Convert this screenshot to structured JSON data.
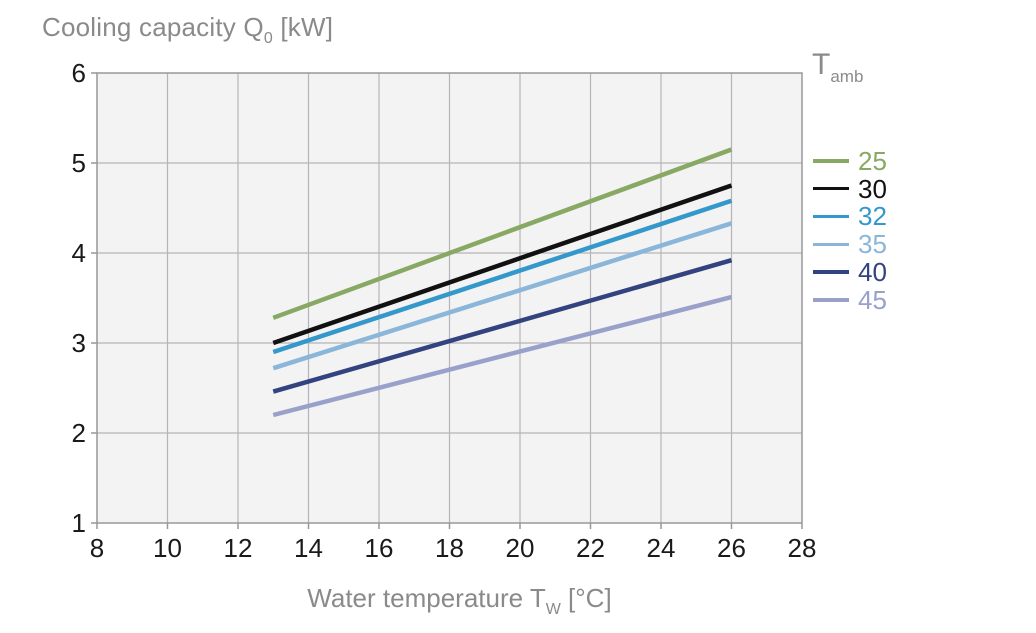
{
  "title": {
    "main": "Cooling capacity Q",
    "sub": "0",
    "unit": " [kW]"
  },
  "xaxis_label": {
    "main": "Water temperature T",
    "sub": "W",
    "unit": " [°C]"
  },
  "legend": {
    "title_main": "T",
    "title_sub": "amb"
  },
  "colors": {
    "title_text": "#8a8a8a",
    "tick_text": "#1a1a1a",
    "plot_background": "#f3f3f4",
    "plot_border": "#98989b",
    "gridline": "#b5b5b8"
  },
  "chart_data": {
    "type": "line",
    "title": "Cooling capacity Q0 [kW]",
    "xlabel": "Water temperature TW [°C]",
    "ylabel": "Cooling capacity Q0 [kW]",
    "legend_title": "Tamb",
    "legend_position": "right",
    "grid": true,
    "xlim": [
      8,
      28
    ],
    "ylim": [
      1,
      6
    ],
    "xticks": [
      8,
      10,
      12,
      14,
      16,
      18,
      20,
      22,
      24,
      26,
      28
    ],
    "yticks": [
      1,
      2,
      3,
      4,
      5,
      6
    ],
    "x": [
      13,
      26
    ],
    "series": [
      {
        "name": "25",
        "color": "#87a963",
        "values": [
          3.28,
          5.15
        ]
      },
      {
        "name": "30",
        "color": "#111111",
        "values": [
          3.0,
          4.75
        ]
      },
      {
        "name": "32",
        "color": "#3498cb",
        "values": [
          2.9,
          4.58
        ]
      },
      {
        "name": "35",
        "color": "#8ab6da",
        "values": [
          2.72,
          4.33
        ]
      },
      {
        "name": "40",
        "color": "#32437f",
        "values": [
          2.46,
          3.92
        ]
      },
      {
        "name": "45",
        "color": "#99a1ca",
        "values": [
          2.2,
          3.51
        ]
      }
    ]
  }
}
